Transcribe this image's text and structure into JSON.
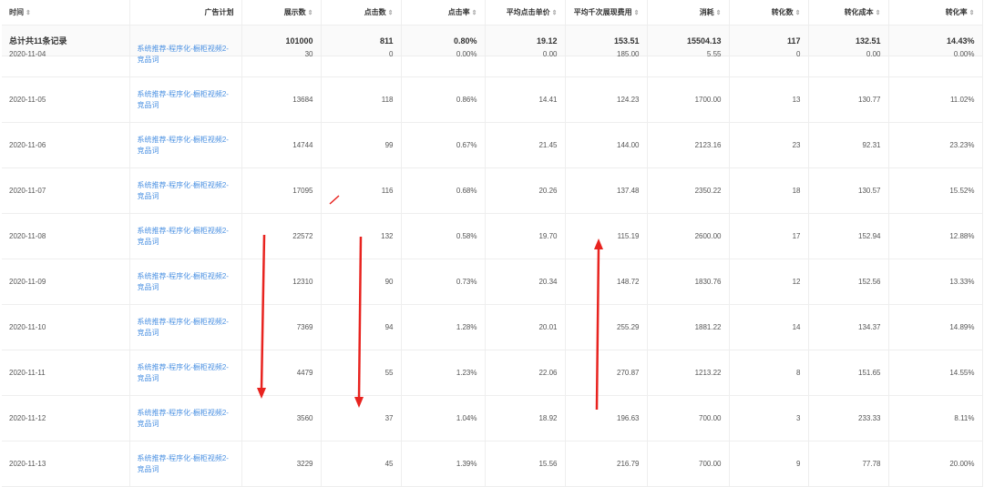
{
  "columns": [
    "时间",
    "广告计划",
    "展示数",
    "点击数",
    "点击率",
    "平均点击单价",
    "平均千次展现费用",
    "消耗",
    "转化数",
    "转化成本",
    "转化率"
  ],
  "summary": [
    "总计共11条记录",
    "",
    "101000",
    "811",
    "0.80%",
    "19.12",
    "153.51",
    "15504.13",
    "117",
    "132.51",
    "14.43%"
  ],
  "plan_name": "系统推荐-程序化-橱柜视频2-竞品词",
  "rows": [
    [
      "2020-11-04",
      "30",
      "0",
      "0.00%",
      "0.00",
      "185.00",
      "5.55",
      "0",
      "0.00",
      "0.00%"
    ],
    [
      "2020-11-05",
      "13684",
      "118",
      "0.86%",
      "14.41",
      "124.23",
      "1700.00",
      "13",
      "130.77",
      "11.02%"
    ],
    [
      "2020-11-06",
      "14744",
      "99",
      "0.67%",
      "21.45",
      "144.00",
      "2123.16",
      "23",
      "92.31",
      "23.23%"
    ],
    [
      "2020-11-07",
      "17095",
      "116",
      "0.68%",
      "20.26",
      "137.48",
      "2350.22",
      "18",
      "130.57",
      "15.52%"
    ],
    [
      "2020-11-08",
      "22572",
      "132",
      "0.58%",
      "19.70",
      "115.19",
      "2600.00",
      "17",
      "152.94",
      "12.88%"
    ],
    [
      "2020-11-09",
      "12310",
      "90",
      "0.73%",
      "20.34",
      "148.72",
      "1830.76",
      "12",
      "152.56",
      "13.33%"
    ],
    [
      "2020-11-10",
      "7369",
      "94",
      "1.28%",
      "20.01",
      "255.29",
      "1881.22",
      "14",
      "134.37",
      "14.89%"
    ],
    [
      "2020-11-11",
      "4479",
      "55",
      "1.23%",
      "22.06",
      "270.87",
      "1213.22",
      "8",
      "151.65",
      "14.55%"
    ],
    [
      "2020-11-12",
      "3560",
      "37",
      "1.04%",
      "18.92",
      "196.63",
      "700.00",
      "3",
      "233.33",
      "8.11%"
    ],
    [
      "2020-11-13",
      "3229",
      "45",
      "1.39%",
      "15.56",
      "216.79",
      "700.00",
      "9",
      "77.78",
      "20.00%"
    ]
  ],
  "annotation_color": "#e8231f"
}
